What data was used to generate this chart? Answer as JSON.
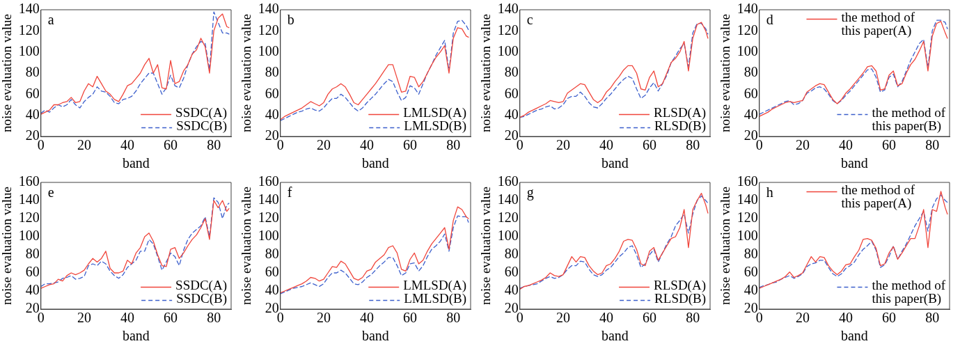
{
  "chart_data": [
    {
      "type": "line",
      "annotations": [
        "a"
      ],
      "xlabel": "band",
      "ylabel": "noise evaluation value",
      "xlim": [
        0,
        88
      ],
      "xticks": [
        0,
        20,
        40,
        60,
        80
      ],
      "ylim": [
        20,
        140
      ],
      "yticks": [
        20,
        40,
        60,
        80,
        100,
        120,
        140
      ],
      "grid": false,
      "legend": "bottom right",
      "marker": "none",
      "x": [
        0,
        2,
        4,
        6,
        8,
        10,
        12,
        14,
        16,
        18,
        20,
        22,
        24,
        26,
        28,
        30,
        32,
        34,
        36,
        38,
        40,
        42,
        44,
        46,
        48,
        50,
        52,
        54,
        56,
        58,
        60,
        62,
        64,
        66,
        68,
        70,
        72,
        74,
        76,
        78,
        80,
        82,
        84,
        86,
        87
      ],
      "series": [
        {
          "name": "SSDC(A)",
          "color": "#f0463c",
          "line_style": "solid",
          "values": [
            41,
            43,
            45,
            50,
            50,
            52,
            53,
            57,
            52,
            53,
            63,
            70,
            67,
            77,
            70,
            63,
            60,
            55,
            53,
            60,
            68,
            70,
            75,
            80,
            88,
            94,
            80,
            88,
            66,
            65,
            92,
            70,
            72,
            82,
            88,
            98,
            102,
            113,
            105,
            80,
            120,
            132,
            136,
            124,
            123
          ]
        },
        {
          "name": "SSDC(B)",
          "color": "#3c5fcc",
          "line_style": "dashed",
          "values": [
            42,
            45,
            43,
            47,
            50,
            48,
            50,
            55,
            50,
            47,
            53,
            57,
            60,
            67,
            63,
            62,
            58,
            52,
            51,
            55,
            56,
            58,
            63,
            70,
            75,
            80,
            80,
            70,
            60,
            66,
            78,
            68,
            66,
            75,
            88,
            98,
            105,
            110,
            108,
            83,
            138,
            128,
            118,
            118,
            117
          ]
        }
      ]
    },
    {
      "type": "line",
      "annotations": [
        "b"
      ],
      "xlabel": "band",
      "ylabel": "noise evaluation value",
      "xlim": [
        0,
        88
      ],
      "xticks": [
        0,
        20,
        40,
        60,
        80
      ],
      "ylim": [
        20,
        140
      ],
      "yticks": [
        20,
        40,
        60,
        80,
        100,
        120,
        140
      ],
      "grid": false,
      "legend": "bottom right",
      "marker": "none",
      "x": [
        0,
        2,
        4,
        6,
        8,
        10,
        12,
        14,
        16,
        18,
        20,
        22,
        24,
        26,
        28,
        30,
        32,
        34,
        36,
        38,
        40,
        42,
        44,
        46,
        48,
        50,
        52,
        54,
        56,
        58,
        60,
        62,
        64,
        66,
        68,
        70,
        72,
        74,
        76,
        78,
        80,
        82,
        84,
        86,
        87
      ],
      "series": [
        {
          "name": "LMLSD(A)",
          "color": "#f0463c",
          "line_style": "solid",
          "values": [
            36,
            39,
            41,
            43,
            45,
            47,
            50,
            53,
            51,
            49,
            52,
            60,
            65,
            67,
            70,
            67,
            60,
            52,
            50,
            55,
            60,
            65,
            70,
            76,
            82,
            88,
            88,
            75,
            62,
            63,
            77,
            76,
            67,
            72,
            80,
            88,
            95,
            100,
            106,
            80,
            113,
            123,
            122,
            115,
            114
          ]
        },
        {
          "name": "LMLSD(B)",
          "color": "#3c5fcc",
          "line_style": "dashed",
          "values": [
            35,
            37,
            39,
            41,
            43,
            44,
            46,
            47,
            45,
            44,
            47,
            52,
            56,
            56,
            60,
            57,
            52,
            47,
            44,
            47,
            52,
            56,
            60,
            65,
            70,
            74,
            72,
            62,
            54,
            57,
            68,
            66,
            60,
            70,
            80,
            88,
            97,
            104,
            111,
            82,
            118,
            129,
            130,
            125,
            121
          ]
        }
      ]
    },
    {
      "type": "line",
      "annotations": [
        "c"
      ],
      "xlabel": "band",
      "ylabel": "noise evaluation value",
      "xlim": [
        0,
        88
      ],
      "xticks": [
        0,
        20,
        40,
        60,
        80
      ],
      "ylim": [
        20,
        140
      ],
      "yticks": [
        20,
        40,
        60,
        80,
        100,
        120,
        140
      ],
      "grid": false,
      "legend": "bottom right",
      "marker": "none",
      "x": [
        0,
        2,
        4,
        6,
        8,
        10,
        12,
        14,
        16,
        18,
        20,
        22,
        24,
        26,
        28,
        30,
        32,
        34,
        36,
        38,
        40,
        42,
        44,
        46,
        48,
        50,
        52,
        54,
        56,
        58,
        60,
        62,
        64,
        66,
        68,
        70,
        72,
        74,
        76,
        78,
        80,
        82,
        84,
        86,
        87
      ],
      "series": [
        {
          "name": "RLSD(A)",
          "color": "#f0463c",
          "line_style": "solid",
          "values": [
            38,
            40,
            43,
            45,
            47,
            49,
            51,
            54,
            53,
            52,
            53,
            61,
            64,
            67,
            70,
            69,
            62,
            55,
            52,
            55,
            62,
            66,
            72,
            77,
            83,
            87,
            87,
            80,
            65,
            64,
            76,
            82,
            67,
            70,
            80,
            90,
            94,
            100,
            110,
            82,
            113,
            126,
            128,
            120,
            113
          ]
        },
        {
          "name": "RLSD(B)",
          "color": "#3c5fcc",
          "line_style": "dashed",
          "values": [
            38,
            39,
            41,
            43,
            45,
            46,
            48,
            49,
            46,
            47,
            50,
            56,
            58,
            58,
            62,
            58,
            52,
            48,
            47,
            51,
            56,
            60,
            65,
            70,
            74,
            77,
            75,
            65,
            56,
            59,
            66,
            71,
            63,
            70,
            78,
            90,
            96,
            103,
            108,
            86,
            118,
            127,
            127,
            122,
            117
          ]
        }
      ]
    },
    {
      "type": "line",
      "annotations": [
        "d"
      ],
      "xlabel": "band",
      "ylabel": "noise evaluation value",
      "xlim": [
        0,
        88
      ],
      "xticks": [
        0,
        20,
        40,
        60,
        80
      ],
      "ylim": [
        20,
        140
      ],
      "yticks": [
        20,
        40,
        60,
        80,
        100,
        120,
        140
      ],
      "grid": false,
      "legend": "right",
      "marker": "none",
      "x": [
        0,
        2,
        4,
        6,
        8,
        10,
        12,
        14,
        16,
        18,
        20,
        22,
        24,
        26,
        28,
        30,
        32,
        34,
        36,
        38,
        40,
        42,
        44,
        46,
        48,
        50,
        52,
        54,
        56,
        58,
        60,
        62,
        64,
        66,
        68,
        70,
        72,
        74,
        76,
        78,
        80,
        82,
        84,
        86,
        87
      ],
      "series": [
        {
          "name": "the method of this paper(A)",
          "color": "#f0463c",
          "line_style": "solid",
          "values": [
            39,
            41,
            43,
            46,
            48,
            50,
            52,
            53,
            52,
            53,
            54,
            62,
            65,
            68,
            70,
            69,
            62,
            55,
            51,
            55,
            61,
            65,
            70,
            75,
            80,
            86,
            87,
            82,
            64,
            65,
            78,
            82,
            68,
            70,
            80,
            88,
            93,
            101,
            110,
            82,
            115,
            127,
            129,
            118,
            113
          ]
        },
        {
          "name": "the method of this paper(B)",
          "color": "#3c5fcc",
          "line_style": "dashed",
          "values": [
            41,
            43,
            45,
            47,
            49,
            51,
            53,
            54,
            50,
            51,
            54,
            61,
            63,
            66,
            67,
            65,
            60,
            54,
            51,
            54,
            59,
            63,
            68,
            73,
            78,
            83,
            84,
            76,
            62,
            64,
            76,
            79,
            67,
            72,
            82,
            92,
            100,
            108,
            112,
            85,
            120,
            130,
            130,
            128,
            122
          ]
        }
      ]
    },
    {
      "type": "line",
      "annotations": [
        "e"
      ],
      "xlabel": "band",
      "ylabel": "noise evaluation value",
      "xlim": [
        0,
        88
      ],
      "xticks": [
        0,
        20,
        40,
        60,
        80
      ],
      "ylim": [
        20,
        160
      ],
      "yticks": [
        20,
        40,
        60,
        80,
        100,
        120,
        140,
        160
      ],
      "grid": false,
      "legend": "bottom right",
      "marker": "none",
      "x": [
        0,
        2,
        4,
        6,
        8,
        10,
        12,
        14,
        16,
        18,
        20,
        22,
        24,
        26,
        28,
        30,
        32,
        34,
        36,
        38,
        40,
        42,
        44,
        46,
        48,
        50,
        52,
        54,
        56,
        58,
        60,
        62,
        64,
        66,
        68,
        70,
        72,
        74,
        76,
        78,
        80,
        82,
        84,
        86,
        87
      ],
      "series": [
        {
          "name": "SSDC(A)",
          "color": "#f0463c",
          "line_style": "solid",
          "values": [
            43,
            45,
            47,
            48,
            53,
            51,
            57,
            60,
            58,
            60,
            63,
            70,
            76,
            72,
            76,
            84,
            65,
            60,
            60,
            62,
            74,
            70,
            82,
            88,
            100,
            104,
            95,
            80,
            68,
            67,
            86,
            88,
            76,
            82,
            90,
            97,
            102,
            110,
            120,
            97,
            140,
            132,
            140,
            128,
            131
          ]
        },
        {
          "name": "SSDC(B)",
          "color": "#3c5fcc",
          "line_style": "dashed",
          "values": [
            45,
            48,
            48,
            49,
            50,
            54,
            55,
            57,
            53,
            54,
            56,
            68,
            70,
            68,
            73,
            70,
            62,
            57,
            54,
            58,
            66,
            70,
            74,
            84,
            84,
            97,
            92,
            78,
            63,
            72,
            82,
            78,
            68,
            85,
            97,
            104,
            108,
            112,
            122,
            100,
            143,
            138,
            120,
            135,
            137
          ]
        }
      ]
    },
    {
      "type": "line",
      "annotations": [
        "f"
      ],
      "xlabel": "band",
      "ylabel": "noise evaluation value",
      "xlim": [
        0,
        88
      ],
      "xticks": [
        0,
        20,
        40,
        60,
        80
      ],
      "ylim": [
        20,
        160
      ],
      "yticks": [
        20,
        40,
        60,
        80,
        100,
        120,
        140,
        160
      ],
      "grid": false,
      "legend": "bottom right",
      "marker": "none",
      "x": [
        0,
        2,
        4,
        6,
        8,
        10,
        12,
        14,
        16,
        18,
        20,
        22,
        24,
        26,
        28,
        30,
        32,
        34,
        36,
        38,
        40,
        42,
        44,
        46,
        48,
        50,
        52,
        54,
        56,
        58,
        60,
        62,
        64,
        66,
        68,
        70,
        72,
        74,
        76,
        78,
        80,
        82,
        84,
        86,
        87
      ],
      "series": [
        {
          "name": "LMLSD(A)",
          "color": "#f0463c",
          "line_style": "solid",
          "values": [
            38,
            40,
            42,
            44,
            46,
            48,
            51,
            55,
            54,
            51,
            53,
            60,
            67,
            66,
            73,
            70,
            62,
            54,
            52,
            55,
            62,
            64,
            72,
            76,
            80,
            88,
            90,
            82,
            64,
            62,
            75,
            82,
            70,
            74,
            84,
            92,
            98,
            104,
            110,
            86,
            118,
            133,
            130,
            122,
            120
          ]
        },
        {
          "name": "LMLSD(B)",
          "color": "#3c5fcc",
          "line_style": "dashed",
          "values": [
            37,
            39,
            41,
            43,
            44,
            45,
            47,
            49,
            47,
            45,
            48,
            55,
            60,
            60,
            63,
            60,
            54,
            48,
            47,
            50,
            55,
            58,
            63,
            68,
            72,
            77,
            77,
            68,
            57,
            60,
            70,
            71,
            62,
            68,
            78,
            86,
            90,
            95,
            103,
            84,
            110,
            123,
            122,
            122,
            116
          ]
        }
      ]
    },
    {
      "type": "line",
      "annotations": [
        "g"
      ],
      "xlabel": "band",
      "ylabel": "noise evaluation value",
      "xlim": [
        0,
        88
      ],
      "xticks": [
        0,
        20,
        40,
        60,
        80
      ],
      "ylim": [
        20,
        160
      ],
      "yticks": [
        20,
        40,
        60,
        80,
        100,
        120,
        140,
        160
      ],
      "grid": false,
      "legend": "bottom right",
      "marker": "none",
      "x": [
        0,
        2,
        4,
        6,
        8,
        10,
        12,
        14,
        16,
        18,
        20,
        22,
        24,
        26,
        28,
        30,
        32,
        34,
        36,
        38,
        40,
        42,
        44,
        46,
        48,
        50,
        52,
        54,
        56,
        58,
        60,
        62,
        64,
        66,
        68,
        70,
        72,
        74,
        76,
        78,
        80,
        82,
        84,
        86,
        87
      ],
      "series": [
        {
          "name": "RLSD(A)",
          "color": "#f0463c",
          "line_style": "solid",
          "values": [
            42,
            45,
            46,
            48,
            50,
            52,
            55,
            60,
            57,
            56,
            58,
            68,
            78,
            72,
            78,
            77,
            68,
            62,
            58,
            60,
            68,
            70,
            76,
            84,
            95,
            97,
            96,
            86,
            70,
            68,
            84,
            88,
            74,
            82,
            90,
            98,
            100,
            110,
            130,
            88,
            130,
            140,
            148,
            135,
            126
          ]
        },
        {
          "name": "RLSD(B)",
          "color": "#3c5fcc",
          "line_style": "dashed",
          "values": [
            43,
            45,
            46,
            47,
            48,
            51,
            54,
            56,
            54,
            55,
            58,
            64,
            68,
            68,
            73,
            72,
            64,
            58,
            56,
            58,
            63,
            66,
            72,
            78,
            82,
            88,
            90,
            80,
            66,
            70,
            80,
            86,
            72,
            82,
            92,
            100,
            112,
            118,
            125,
            104,
            125,
            140,
            145,
            140,
            137
          ]
        }
      ]
    },
    {
      "type": "line",
      "annotations": [
        "h"
      ],
      "xlabel": "band",
      "ylabel": "noise evaluation value",
      "xlim": [
        0,
        88
      ],
      "xticks": [
        0,
        20,
        40,
        60,
        80
      ],
      "ylim": [
        20,
        160
      ],
      "yticks": [
        20,
        40,
        60,
        80,
        100,
        120,
        140,
        160
      ],
      "grid": false,
      "legend": "right",
      "marker": "none",
      "x": [
        0,
        2,
        4,
        6,
        8,
        10,
        12,
        14,
        16,
        18,
        20,
        22,
        24,
        26,
        28,
        30,
        32,
        34,
        36,
        38,
        40,
        42,
        44,
        46,
        48,
        50,
        52,
        54,
        56,
        58,
        60,
        62,
        64,
        66,
        68,
        70,
        72,
        74,
        76,
        78,
        80,
        82,
        84,
        86,
        87
      ],
      "series": [
        {
          "name": "the method of this paper(A)",
          "color": "#f0463c",
          "line_style": "solid",
          "values": [
            43,
            45,
            47,
            49,
            51,
            53,
            56,
            61,
            55,
            57,
            60,
            69,
            78,
            72,
            78,
            77,
            68,
            62,
            58,
            62,
            69,
            70,
            78,
            85,
            97,
            98,
            96,
            87,
            68,
            70,
            82,
            89,
            75,
            82,
            90,
            98,
            98,
            112,
            130,
            88,
            130,
            128,
            150,
            132,
            125
          ]
        },
        {
          "name": "the method of this paper(B)",
          "color": "#3c5fcc",
          "line_style": "dashed",
          "values": [
            44,
            46,
            47,
            49,
            50,
            53,
            55,
            57,
            54,
            56,
            59,
            67,
            70,
            71,
            74,
            74,
            66,
            59,
            56,
            59,
            65,
            68,
            72,
            80,
            86,
            90,
            95,
            85,
            66,
            69,
            78,
            90,
            75,
            84,
            92,
            102,
            112,
            120,
            128,
            106,
            132,
            142,
            146,
            140,
            138
          ]
        }
      ]
    }
  ]
}
